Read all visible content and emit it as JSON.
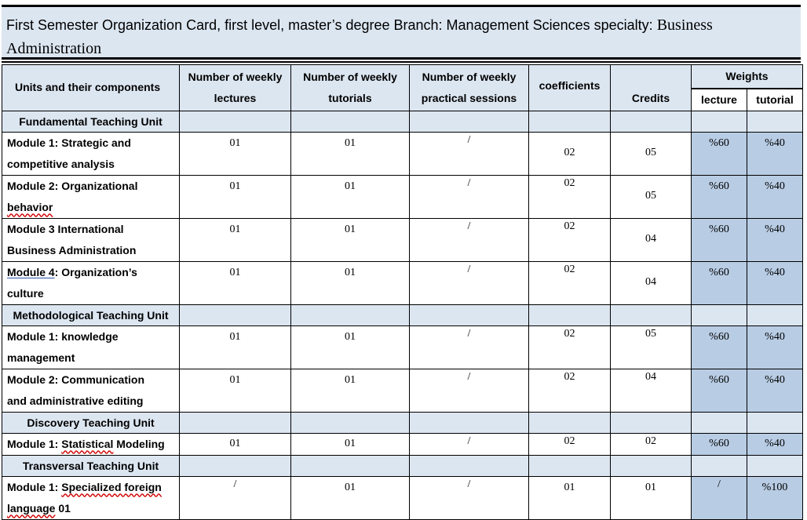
{
  "title": {
    "line1_sans": "First Semester Organization Card, first level, master’s degree Branch: Management Sciences specialty:",
    "line1_serif": "Business",
    "line2": "Administration"
  },
  "header": {
    "units": "Units and their components",
    "lectures_1": "Number of weekly",
    "lectures_2": "lectures",
    "tutorials_1": "Number of weekly",
    "tutorials_2": "tutorials",
    "practical_1": "Number of weekly",
    "practical_2": "practical sessions",
    "coefficients": "coefficients",
    "credits": "Credits",
    "weights": "Weights",
    "lecture": "lecture",
    "tutorial": "tutorial"
  },
  "units": [
    {
      "name": "Fundamental Teaching Unit",
      "modules": [
        {
          "name_a": "Module 1: Strategic and",
          "name_b": "competitive analysis",
          "lectures": "01",
          "tutorials": "01",
          "practical": "/",
          "coef": "02",
          "credits": "05",
          "w_lecture": "%60",
          "w_tutorial": "%40"
        },
        {
          "name_a": "Module 2: Organizational",
          "name_b": "behavior",
          "lectures": "01",
          "tutorials": "01",
          "practical": "/",
          "coef": "02",
          "credits": "05",
          "w_lecture": "%60",
          "w_tutorial": "%40"
        },
        {
          "name_a": "Module 3 International",
          "name_b": "Business Administration",
          "lectures": "01",
          "tutorials": "01",
          "practical": "/",
          "coef": "02",
          "credits": "04",
          "w_lecture": "%60",
          "w_tutorial": "%40"
        },
        {
          "name_a_pre": "Module 4",
          "name_a_post": ": Organization’s",
          "name_b": "culture",
          "lectures": "01",
          "tutorials": "01",
          "practical": "/",
          "coef": "02",
          "credits": "04",
          "w_lecture": "%60",
          "w_tutorial": "%40"
        }
      ]
    },
    {
      "name": "Methodological Teaching Unit",
      "modules": [
        {
          "name_a": "Module 1: knowledge",
          "name_b": "management",
          "lectures": "01",
          "tutorials": "01",
          "practical": "/",
          "coef": "02",
          "credits": "05",
          "w_lecture": "%60",
          "w_tutorial": "%40"
        },
        {
          "name_a": "Module 2: Communication",
          "name_b": "and administrative editing",
          "lectures": "01",
          "tutorials": "01",
          "practical": "/",
          "coef": "02",
          "credits": "04",
          "w_lecture": "%60",
          "w_tutorial": "%40"
        }
      ]
    },
    {
      "name": "Discovery Teaching Unit",
      "modules": [
        {
          "name_a_pre": "Module 1: ",
          "name_a_wavy": "Statistical",
          "name_a_post": " Modeling",
          "lectures": "01",
          "tutorials": "01",
          "practical": "/",
          "coef": "02",
          "credits": "02",
          "w_lecture": "%60",
          "w_tutorial": "%40"
        }
      ]
    },
    {
      "name": "Transversal Teaching Unit",
      "modules": [
        {
          "name_a_pre": "Module 1: ",
          "name_a_wavy": "Specialized foreign",
          "name_b_wavy": "language",
          "name_b_post": " 01",
          "lectures": "/",
          "tutorials": "01",
          "practical": "/",
          "coef": "01",
          "credits": "01",
          "w_lecture": "/",
          "w_tutorial": "%100"
        }
      ]
    }
  ]
}
